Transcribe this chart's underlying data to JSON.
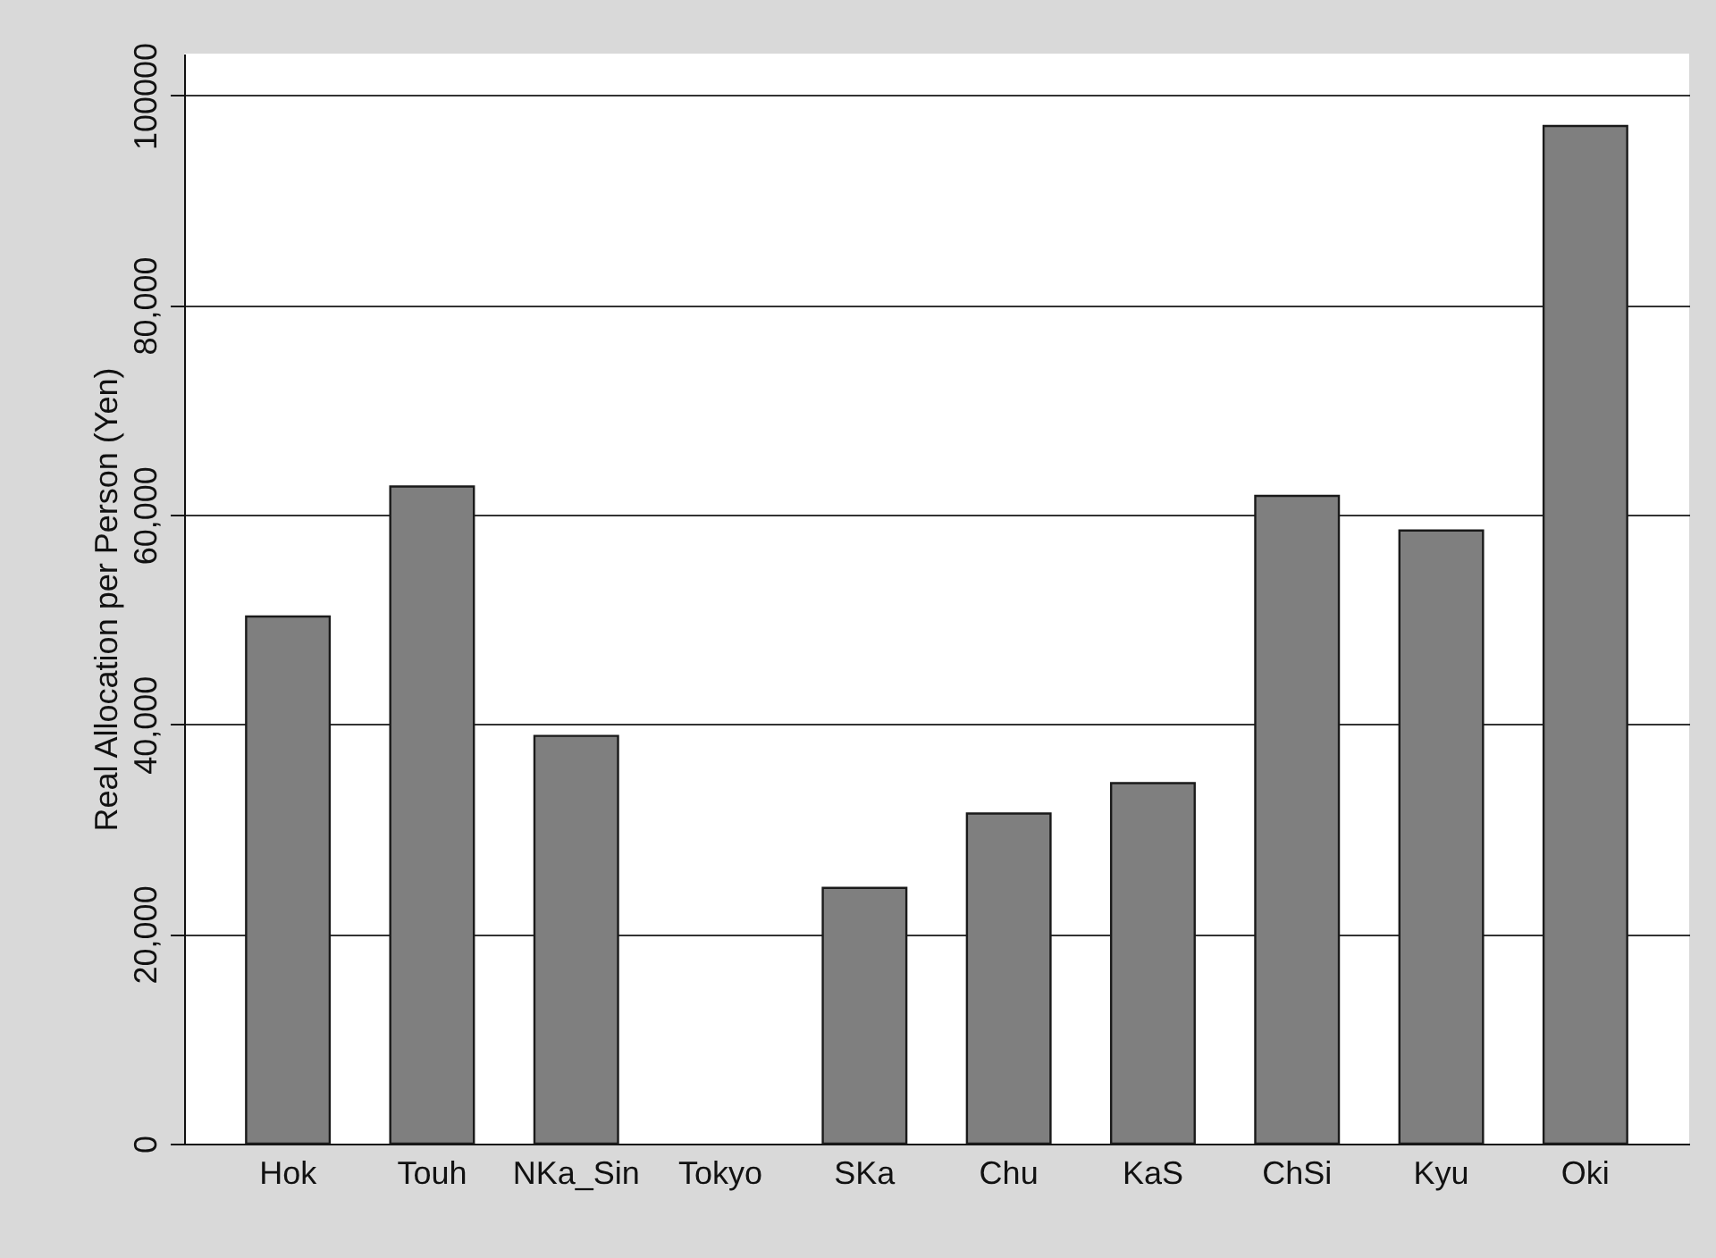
{
  "chart_data": {
    "type": "bar",
    "ylabel": "Real Allocation per Person (Yen)",
    "categories": [
      "Hok",
      "Touh",
      "NKa_Sin",
      "Tokyo",
      "SKa",
      "Chu",
      "KaS",
      "ChSi",
      "Kyu",
      "Oki"
    ],
    "values": [
      50300,
      62700,
      38900,
      null,
      24400,
      31500,
      34400,
      61800,
      58500,
      97100
    ],
    "color": "#7f7f7f",
    "ylim": [
      0,
      104000
    ],
    "yticks": [
      0,
      {
        "value": 20000,
        "label": "20,000"
      },
      {
        "value": 40000,
        "label": "40,000"
      },
      {
        "value": 60000,
        "label": "60,000"
      },
      {
        "value": 80000,
        "label": "80,000"
      },
      100000
    ],
    "grid": "y"
  }
}
